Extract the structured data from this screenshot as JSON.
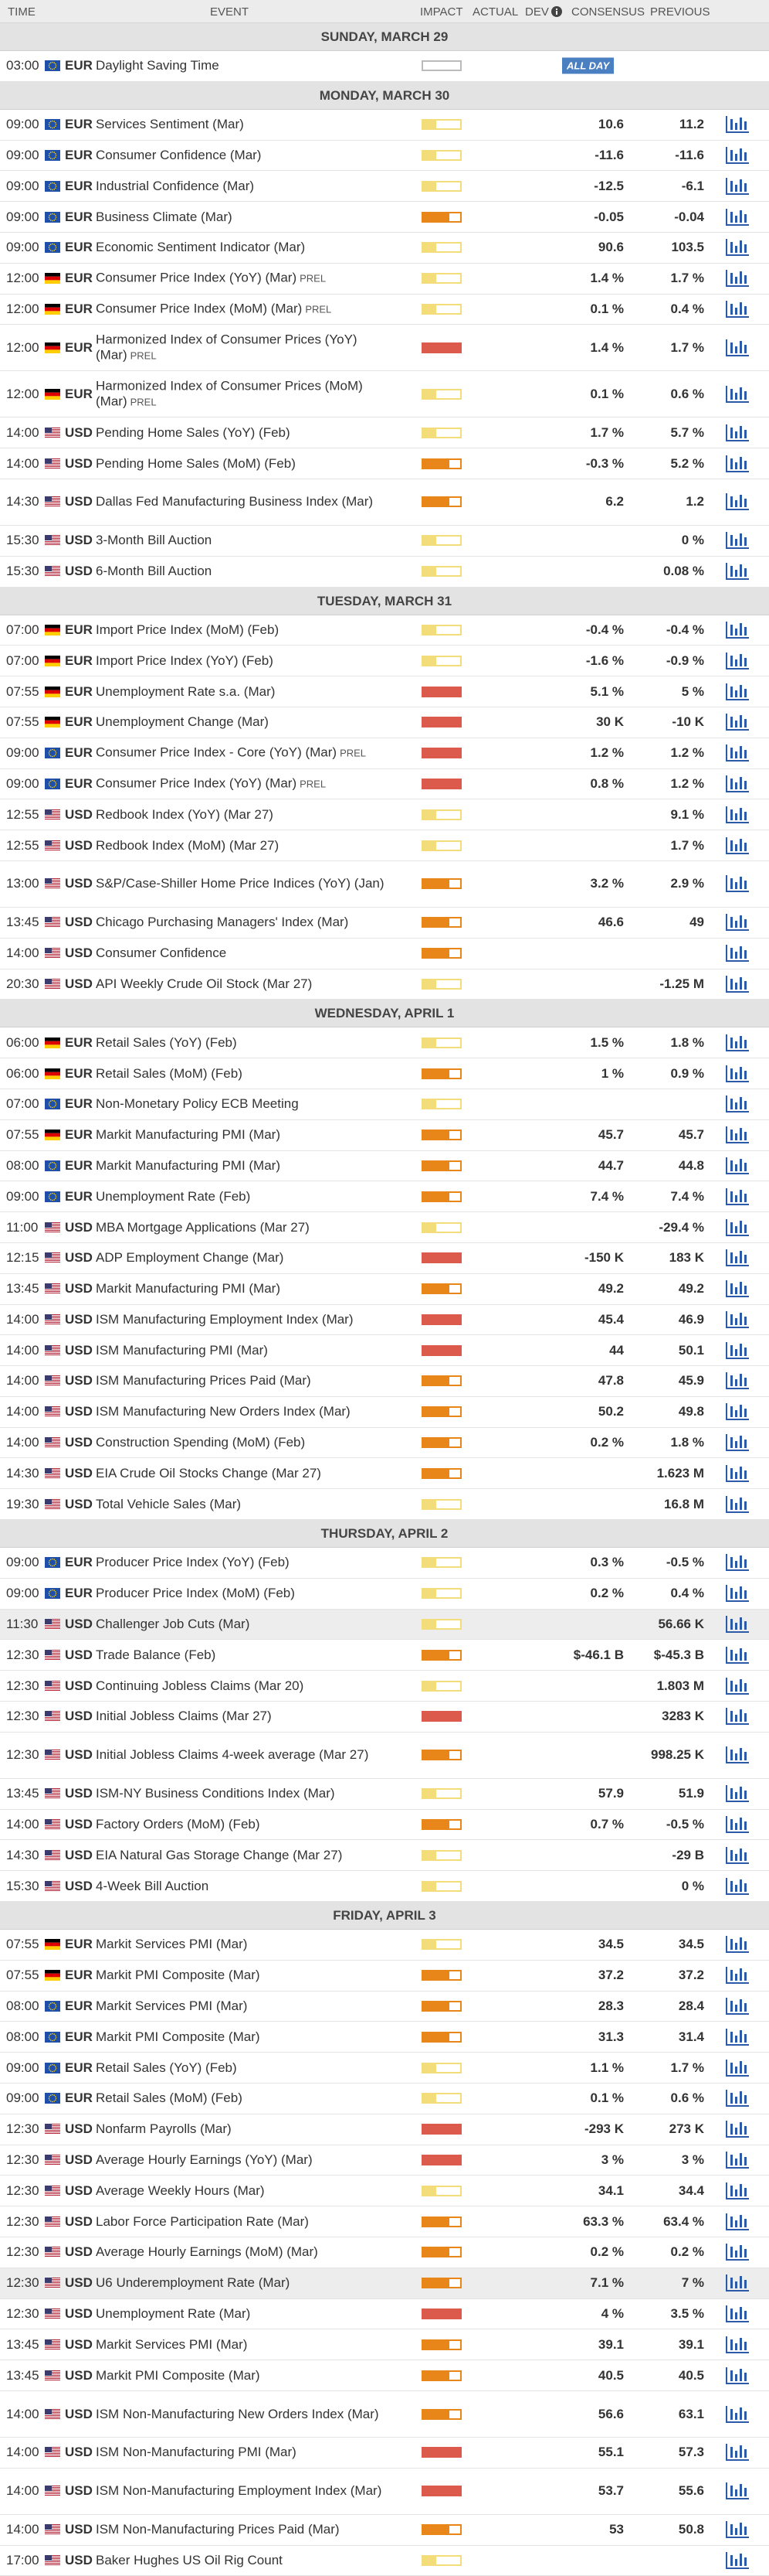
{
  "header": {
    "time": "TIME",
    "event": "EVENT",
    "impact": "IMPACT",
    "actual": "ACTUAL",
    "dev": "DEV",
    "consensus": "CONSENSUS",
    "previous": "PREVIOUS"
  },
  "days": [
    {
      "title": "SUNDAY, MARCH 29",
      "events": [
        {
          "time": "03:00",
          "flag": "eu",
          "currency": "EUR",
          "event": "Daylight Saving Time",
          "impact": "none",
          "tag": "ALL DAY"
        }
      ]
    },
    {
      "title": "MONDAY, MARCH 30",
      "events": [
        {
          "time": "09:00",
          "flag": "eu",
          "currency": "EUR",
          "event": "Services Sentiment (Mar)",
          "impact": "low",
          "consensus": "10.6",
          "previous": "11.2"
        },
        {
          "time": "09:00",
          "flag": "eu",
          "currency": "EUR",
          "event": "Consumer Confidence (Mar)",
          "impact": "low",
          "consensus": "-11.6",
          "previous": "-11.6"
        },
        {
          "time": "09:00",
          "flag": "eu",
          "currency": "EUR",
          "event": "Industrial Confidence (Mar)",
          "impact": "low",
          "consensus": "-12.5",
          "previous": "-6.1"
        },
        {
          "time": "09:00",
          "flag": "eu",
          "currency": "EUR",
          "event": "Business Climate (Mar)",
          "impact": "medium",
          "consensus": "-0.05",
          "previous": "-0.04"
        },
        {
          "time": "09:00",
          "flag": "eu",
          "currency": "EUR",
          "event": "Economic Sentiment Indicator (Mar)",
          "impact": "low",
          "consensus": "90.6",
          "previous": "103.5"
        },
        {
          "time": "12:00",
          "flag": "de",
          "currency": "EUR",
          "event": "Consumer Price Index (YoY) (Mar)",
          "note": "PREL",
          "impact": "low",
          "consensus": "1.4 %",
          "previous": "1.7 %"
        },
        {
          "time": "12:00",
          "flag": "de",
          "currency": "EUR",
          "event": "Consumer Price Index (MoM) (Mar)",
          "note": "PREL",
          "impact": "low",
          "consensus": "0.1 %",
          "previous": "0.4 %"
        },
        {
          "time": "12:00",
          "flag": "de",
          "currency": "EUR",
          "event": "Harmonized Index of Consumer Prices (YoY) (Mar)",
          "note": "PREL",
          "impact": "high",
          "consensus": "1.4 %",
          "previous": "1.7 %"
        },
        {
          "time": "12:00",
          "flag": "de",
          "currency": "EUR",
          "event": "Harmonized Index of Consumer Prices (MoM) (Mar)",
          "note": "PREL",
          "impact": "low",
          "consensus": "0.1 %",
          "previous": "0.6 %"
        },
        {
          "time": "14:00",
          "flag": "us",
          "currency": "USD",
          "event": "Pending Home Sales (YoY) (Feb)",
          "impact": "low",
          "consensus": "1.7 %",
          "previous": "5.7 %"
        },
        {
          "time": "14:00",
          "flag": "us",
          "currency": "USD",
          "event": "Pending Home Sales (MoM) (Feb)",
          "impact": "medium",
          "consensus": "-0.3 %",
          "previous": "5.2 %"
        },
        {
          "time": "14:30",
          "flag": "us",
          "currency": "USD",
          "event": "Dallas Fed Manufacturing Business Index (Mar)",
          "impact": "medium",
          "consensus": "6.2",
          "previous": "1.2"
        },
        {
          "time": "15:30",
          "flag": "us",
          "currency": "USD",
          "event": "3-Month Bill Auction",
          "impact": "low",
          "previous": "0 %"
        },
        {
          "time": "15:30",
          "flag": "us",
          "currency": "USD",
          "event": "6-Month Bill Auction",
          "impact": "low",
          "previous": "0.08 %"
        }
      ]
    },
    {
      "title": "TUESDAY, MARCH 31",
      "events": [
        {
          "time": "07:00",
          "flag": "de",
          "currency": "EUR",
          "event": "Import Price Index (MoM) (Feb)",
          "impact": "low",
          "consensus": "-0.4 %",
          "previous": "-0.4 %"
        },
        {
          "time": "07:00",
          "flag": "de",
          "currency": "EUR",
          "event": "Import Price Index (YoY) (Feb)",
          "impact": "low",
          "consensus": "-1.6 %",
          "previous": "-0.9 %"
        },
        {
          "time": "07:55",
          "flag": "de",
          "currency": "EUR",
          "event": "Unemployment Rate s.a. (Mar)",
          "impact": "high",
          "consensus": "5.1 %",
          "previous": "5 %"
        },
        {
          "time": "07:55",
          "flag": "de",
          "currency": "EUR",
          "event": "Unemployment Change (Mar)",
          "impact": "high",
          "consensus": "30 K",
          "previous": "-10 K"
        },
        {
          "time": "09:00",
          "flag": "eu",
          "currency": "EUR",
          "event": "Consumer Price Index - Core (YoY) (Mar)",
          "note": "PREL",
          "impact": "high",
          "consensus": "1.2 %",
          "previous": "1.2 %"
        },
        {
          "time": "09:00",
          "flag": "eu",
          "currency": "EUR",
          "event": "Consumer Price Index (YoY) (Mar)",
          "note": "PREL",
          "impact": "high",
          "consensus": "0.8 %",
          "previous": "1.2 %"
        },
        {
          "time": "12:55",
          "flag": "us",
          "currency": "USD",
          "event": "Redbook Index (YoY) (Mar 27)",
          "impact": "low",
          "previous": "9.1 %"
        },
        {
          "time": "12:55",
          "flag": "us",
          "currency": "USD",
          "event": "Redbook Index (MoM) (Mar 27)",
          "impact": "low",
          "previous": "1.7 %"
        },
        {
          "time": "13:00",
          "flag": "us",
          "currency": "USD",
          "event": "S&P/Case-Shiller Home Price Indices (YoY) (Jan)",
          "impact": "medium",
          "consensus": "3.2 %",
          "previous": "2.9 %"
        },
        {
          "time": "13:45",
          "flag": "us",
          "currency": "USD",
          "event": "Chicago Purchasing Managers' Index (Mar)",
          "impact": "medium",
          "consensus": "46.6",
          "previous": "49"
        },
        {
          "time": "14:00",
          "flag": "us",
          "currency": "USD",
          "event": "Consumer Confidence",
          "impact": "medium"
        },
        {
          "time": "20:30",
          "flag": "us",
          "currency": "USD",
          "event": "API Weekly Crude Oil Stock (Mar 27)",
          "impact": "low",
          "previous": "-1.25 M"
        }
      ]
    },
    {
      "title": "WEDNESDAY, APRIL 1",
      "events": [
        {
          "time": "06:00",
          "flag": "de",
          "currency": "EUR",
          "event": "Retail Sales (YoY) (Feb)",
          "impact": "low",
          "consensus": "1.5 %",
          "previous": "1.8 %"
        },
        {
          "time": "06:00",
          "flag": "de",
          "currency": "EUR",
          "event": "Retail Sales (MoM) (Feb)",
          "impact": "medium",
          "consensus": "1 %",
          "previous": "0.9 %"
        },
        {
          "time": "07:00",
          "flag": "eu",
          "currency": "EUR",
          "event": "Non-Monetary Policy ECB Meeting",
          "impact": "low"
        },
        {
          "time": "07:55",
          "flag": "de",
          "currency": "EUR",
          "event": "Markit Manufacturing PMI (Mar)",
          "impact": "medium",
          "consensus": "45.7",
          "previous": "45.7"
        },
        {
          "time": "08:00",
          "flag": "eu",
          "currency": "EUR",
          "event": "Markit Manufacturing PMI (Mar)",
          "impact": "medium",
          "consensus": "44.7",
          "previous": "44.8"
        },
        {
          "time": "09:00",
          "flag": "eu",
          "currency": "EUR",
          "event": "Unemployment Rate (Feb)",
          "impact": "medium",
          "consensus": "7.4 %",
          "previous": "7.4 %"
        },
        {
          "time": "11:00",
          "flag": "us",
          "currency": "USD",
          "event": "MBA Mortgage Applications (Mar 27)",
          "impact": "low",
          "previous": "-29.4 %"
        },
        {
          "time": "12:15",
          "flag": "us",
          "currency": "USD",
          "event": "ADP Employment Change (Mar)",
          "impact": "high",
          "consensus": "-150 K",
          "previous": "183 K"
        },
        {
          "time": "13:45",
          "flag": "us",
          "currency": "USD",
          "event": "Markit Manufacturing PMI (Mar)",
          "impact": "medium",
          "consensus": "49.2",
          "previous": "49.2"
        },
        {
          "time": "14:00",
          "flag": "us",
          "currency": "USD",
          "event": "ISM Manufacturing Employment Index (Mar)",
          "impact": "high",
          "consensus": "45.4",
          "previous": "46.9"
        },
        {
          "time": "14:00",
          "flag": "us",
          "currency": "USD",
          "event": "ISM Manufacturing PMI (Mar)",
          "impact": "high",
          "consensus": "44",
          "previous": "50.1"
        },
        {
          "time": "14:00",
          "flag": "us",
          "currency": "USD",
          "event": "ISM Manufacturing Prices Paid (Mar)",
          "impact": "medium",
          "consensus": "47.8",
          "previous": "45.9"
        },
        {
          "time": "14:00",
          "flag": "us",
          "currency": "USD",
          "event": "ISM Manufacturing New Orders Index (Mar)",
          "impact": "medium",
          "consensus": "50.2",
          "previous": "49.8"
        },
        {
          "time": "14:00",
          "flag": "us",
          "currency": "USD",
          "event": "Construction Spending (MoM) (Feb)",
          "impact": "medium",
          "consensus": "0.2 %",
          "previous": "1.8 %"
        },
        {
          "time": "14:30",
          "flag": "us",
          "currency": "USD",
          "event": "EIA Crude Oil Stocks Change (Mar 27)",
          "impact": "medium",
          "previous": "1.623 M"
        },
        {
          "time": "19:30",
          "flag": "us",
          "currency": "USD",
          "event": "Total Vehicle Sales (Mar)",
          "impact": "low",
          "previous": "16.8 M"
        }
      ]
    },
    {
      "title": "THURSDAY, APRIL 2",
      "events": [
        {
          "time": "09:00",
          "flag": "eu",
          "currency": "EUR",
          "event": "Producer Price Index (YoY) (Feb)",
          "impact": "low",
          "consensus": "0.3 %",
          "previous": "-0.5 %"
        },
        {
          "time": "09:00",
          "flag": "eu",
          "currency": "EUR",
          "event": "Producer Price Index (MoM) (Feb)",
          "impact": "low",
          "consensus": "0.2 %",
          "previous": "0.4 %"
        },
        {
          "time": "11:30",
          "flag": "us",
          "currency": "USD",
          "event": "Challenger Job Cuts (Mar)",
          "impact": "low",
          "previous": "56.66 K",
          "highlight": true
        },
        {
          "time": "12:30",
          "flag": "us",
          "currency": "USD",
          "event": "Trade Balance (Feb)",
          "impact": "medium",
          "consensus": "$-46.1 B",
          "previous": "$-45.3 B"
        },
        {
          "time": "12:30",
          "flag": "us",
          "currency": "USD",
          "event": "Continuing Jobless Claims (Mar 20)",
          "impact": "low",
          "previous": "1.803 M"
        },
        {
          "time": "12:30",
          "flag": "us",
          "currency": "USD",
          "event": "Initial Jobless Claims (Mar 27)",
          "impact": "high",
          "previous": "3283 K"
        },
        {
          "time": "12:30",
          "flag": "us",
          "currency": "USD",
          "event": "Initial Jobless Claims 4-week average (Mar 27)",
          "impact": "medium",
          "previous": "998.25 K"
        },
        {
          "time": "13:45",
          "flag": "us",
          "currency": "USD",
          "event": "ISM-NY Business Conditions Index (Mar)",
          "impact": "low",
          "consensus": "57.9",
          "previous": "51.9"
        },
        {
          "time": "14:00",
          "flag": "us",
          "currency": "USD",
          "event": "Factory Orders (MoM) (Feb)",
          "impact": "medium",
          "consensus": "0.7 %",
          "previous": "-0.5 %"
        },
        {
          "time": "14:30",
          "flag": "us",
          "currency": "USD",
          "event": "EIA Natural Gas Storage Change (Mar 27)",
          "impact": "low",
          "previous": "-29 B"
        },
        {
          "time": "15:30",
          "flag": "us",
          "currency": "USD",
          "event": "4-Week Bill Auction",
          "impact": "low",
          "previous": "0 %"
        }
      ]
    },
    {
      "title": "FRIDAY, APRIL 3",
      "events": [
        {
          "time": "07:55",
          "flag": "de",
          "currency": "EUR",
          "event": "Markit Services PMI (Mar)",
          "impact": "low",
          "consensus": "34.5",
          "previous": "34.5"
        },
        {
          "time": "07:55",
          "flag": "de",
          "currency": "EUR",
          "event": "Markit PMI Composite (Mar)",
          "impact": "medium",
          "consensus": "37.2",
          "previous": "37.2"
        },
        {
          "time": "08:00",
          "flag": "eu",
          "currency": "EUR",
          "event": "Markit Services PMI (Mar)",
          "impact": "medium",
          "consensus": "28.3",
          "previous": "28.4"
        },
        {
          "time": "08:00",
          "flag": "eu",
          "currency": "EUR",
          "event": "Markit PMI Composite (Mar)",
          "impact": "medium",
          "consensus": "31.3",
          "previous": "31.4"
        },
        {
          "time": "09:00",
          "flag": "eu",
          "currency": "EUR",
          "event": "Retail Sales (YoY) (Feb)",
          "impact": "low",
          "consensus": "1.1 %",
          "previous": "1.7 %"
        },
        {
          "time": "09:00",
          "flag": "eu",
          "currency": "EUR",
          "event": "Retail Sales (MoM) (Feb)",
          "impact": "low",
          "consensus": "0.1 %",
          "previous": "0.6 %"
        },
        {
          "time": "12:30",
          "flag": "us",
          "currency": "USD",
          "event": "Nonfarm Payrolls (Mar)",
          "impact": "high",
          "consensus": "-293 K",
          "previous": "273 K"
        },
        {
          "time": "12:30",
          "flag": "us",
          "currency": "USD",
          "event": "Average Hourly Earnings (YoY) (Mar)",
          "impact": "high",
          "consensus": "3 %",
          "previous": "3 %"
        },
        {
          "time": "12:30",
          "flag": "us",
          "currency": "USD",
          "event": "Average Weekly Hours (Mar)",
          "impact": "low",
          "consensus": "34.1",
          "previous": "34.4"
        },
        {
          "time": "12:30",
          "flag": "us",
          "currency": "USD",
          "event": "Labor Force Participation Rate (Mar)",
          "impact": "medium",
          "consensus": "63.3 %",
          "previous": "63.4 %"
        },
        {
          "time": "12:30",
          "flag": "us",
          "currency": "USD",
          "event": "Average Hourly Earnings (MoM) (Mar)",
          "impact": "medium",
          "consensus": "0.2 %",
          "previous": "0.2 %"
        },
        {
          "time": "12:30",
          "flag": "us",
          "currency": "USD",
          "event": "U6 Underemployment Rate (Mar)",
          "impact": "medium",
          "consensus": "7.1 %",
          "previous": "7 %",
          "highlight": true
        },
        {
          "time": "12:30",
          "flag": "us",
          "currency": "USD",
          "event": "Unemployment Rate (Mar)",
          "impact": "high",
          "consensus": "4 %",
          "previous": "3.5 %"
        },
        {
          "time": "13:45",
          "flag": "us",
          "currency": "USD",
          "event": "Markit Services PMI (Mar)",
          "impact": "medium",
          "consensus": "39.1",
          "previous": "39.1"
        },
        {
          "time": "13:45",
          "flag": "us",
          "currency": "USD",
          "event": "Markit PMI Composite (Mar)",
          "impact": "medium",
          "consensus": "40.5",
          "previous": "40.5"
        },
        {
          "time": "14:00",
          "flag": "us",
          "currency": "USD",
          "event": "ISM Non-Manufacturing New Orders Index (Mar)",
          "impact": "medium",
          "consensus": "56.6",
          "previous": "63.1"
        },
        {
          "time": "14:00",
          "flag": "us",
          "currency": "USD",
          "event": "ISM Non-Manufacturing PMI (Mar)",
          "impact": "high",
          "consensus": "55.1",
          "previous": "57.3"
        },
        {
          "time": "14:00",
          "flag": "us",
          "currency": "USD",
          "event": "ISM Non-Manufacturing Employment Index (Mar)",
          "impact": "high",
          "consensus": "53.7",
          "previous": "55.6"
        },
        {
          "time": "14:00",
          "flag": "us",
          "currency": "USD",
          "event": "ISM Non-Manufacturing Prices Paid (Mar)",
          "impact": "medium",
          "consensus": "53",
          "previous": "50.8"
        },
        {
          "time": "17:00",
          "flag": "us",
          "currency": "USD",
          "event": "Baker Hughes US Oil Rig Count",
          "impact": "low"
        }
      ]
    }
  ]
}
